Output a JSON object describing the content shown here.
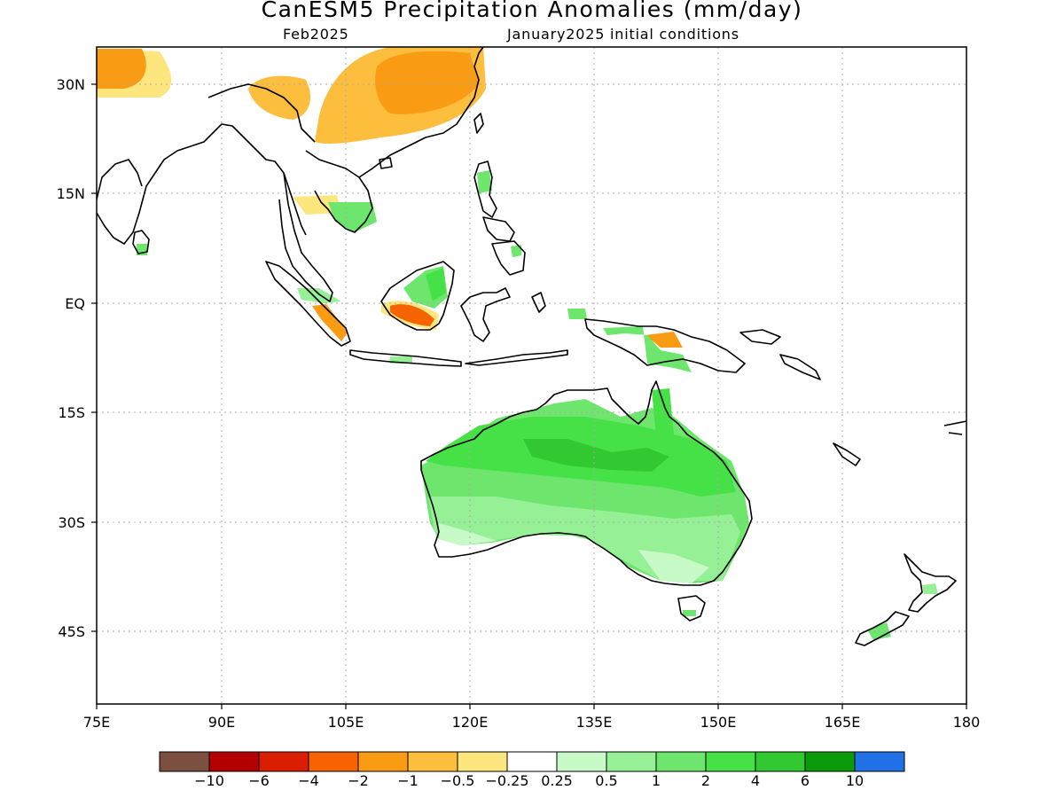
{
  "title": "CanESM5 Precipitation Anomalies (mm/day)",
  "subtitle_left": "Feb2025",
  "subtitle_right": "January2025 initial conditions",
  "axes": {
    "x_ticks": [
      "75E",
      "90E",
      "105E",
      "120E",
      "135E",
      "150E",
      "165E",
      "180"
    ],
    "y_ticks": [
      "30N",
      "15N",
      "EQ",
      "15S",
      "30S",
      "45S"
    ]
  },
  "colorbar": {
    "colors": [
      "#7b5040",
      "#b40000",
      "#dc1e00",
      "#f56400",
      "#fa9b14",
      "#fcbe3c",
      "#fee67e",
      "#ffffff",
      "#c8fac8",
      "#96f096",
      "#6ee66e",
      "#46e146",
      "#32c832",
      "#0a9b0a",
      "#2070e6"
    ],
    "labels": [
      "−10",
      "−6",
      "−4",
      "−2",
      "−1",
      "−0.5",
      "−0.25",
      "0.25",
      "0.5",
      "1",
      "2",
      "4",
      "6",
      "10"
    ]
  },
  "palette": {
    "land_outline": "#000000",
    "grid": "#aaaaaa"
  }
}
